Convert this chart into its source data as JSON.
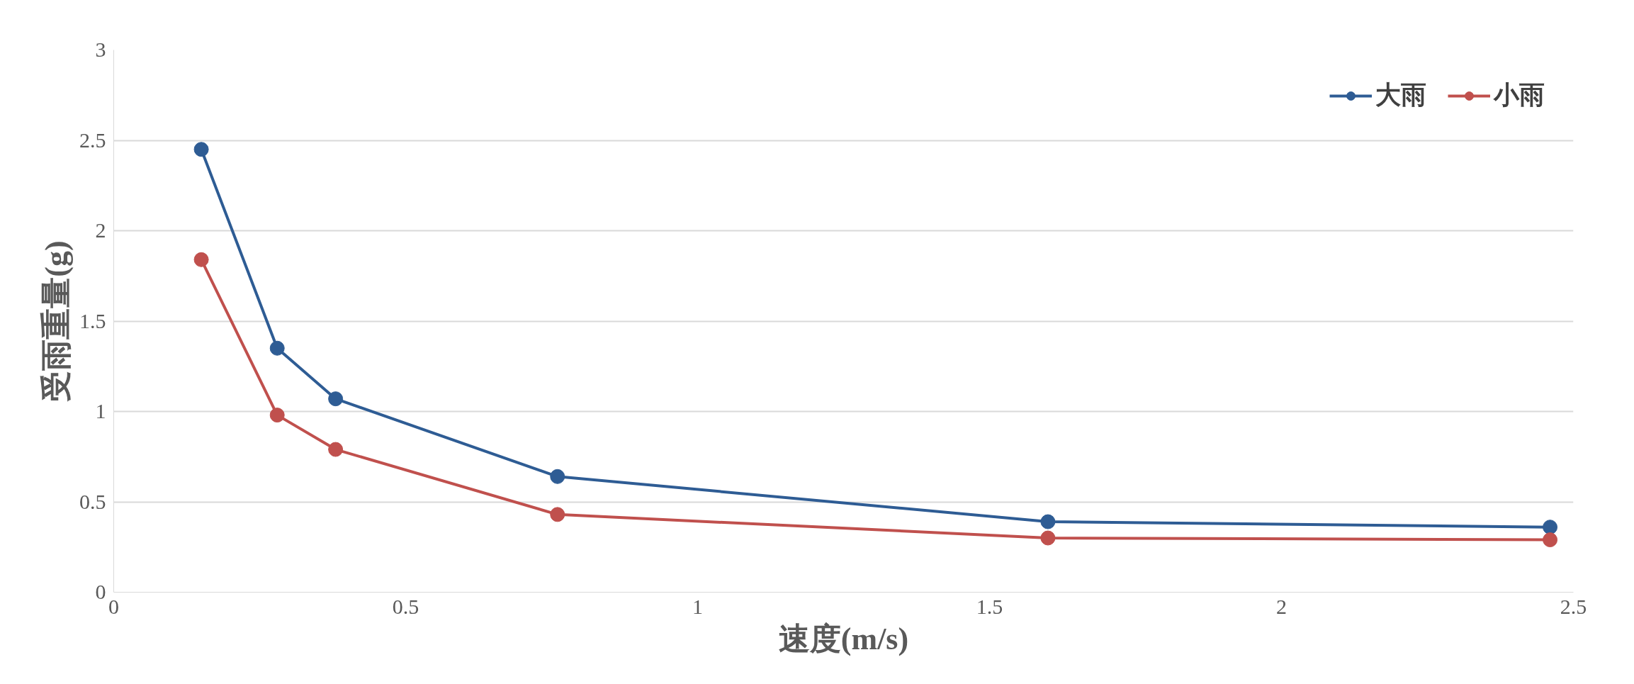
{
  "chart_data": {
    "type": "line",
    "xlabel": "速度(m/s)",
    "ylabel": "受雨重量(g)",
    "x": [
      0.15,
      0.28,
      0.38,
      0.76,
      1.6,
      2.46
    ],
    "series": [
      {
        "name": "大雨",
        "color": "#2e5c94",
        "values": [
          2.45,
          1.35,
          1.07,
          0.64,
          0.39,
          0.36
        ]
      },
      {
        "name": "小雨",
        "color": "#c0504d",
        "values": [
          1.84,
          0.98,
          0.79,
          0.43,
          0.3,
          0.29
        ]
      }
    ],
    "xlim": [
      0,
      2.5
    ],
    "xticks": [
      0,
      0.5,
      1,
      1.5,
      2,
      2.5
    ],
    "ylim": [
      0,
      3
    ],
    "yticks": [
      0,
      0.5,
      1,
      1.5,
      2,
      2.5,
      3
    ],
    "grid": "y",
    "legend": "top right",
    "marker": "circle",
    "line_style": "solid"
  }
}
